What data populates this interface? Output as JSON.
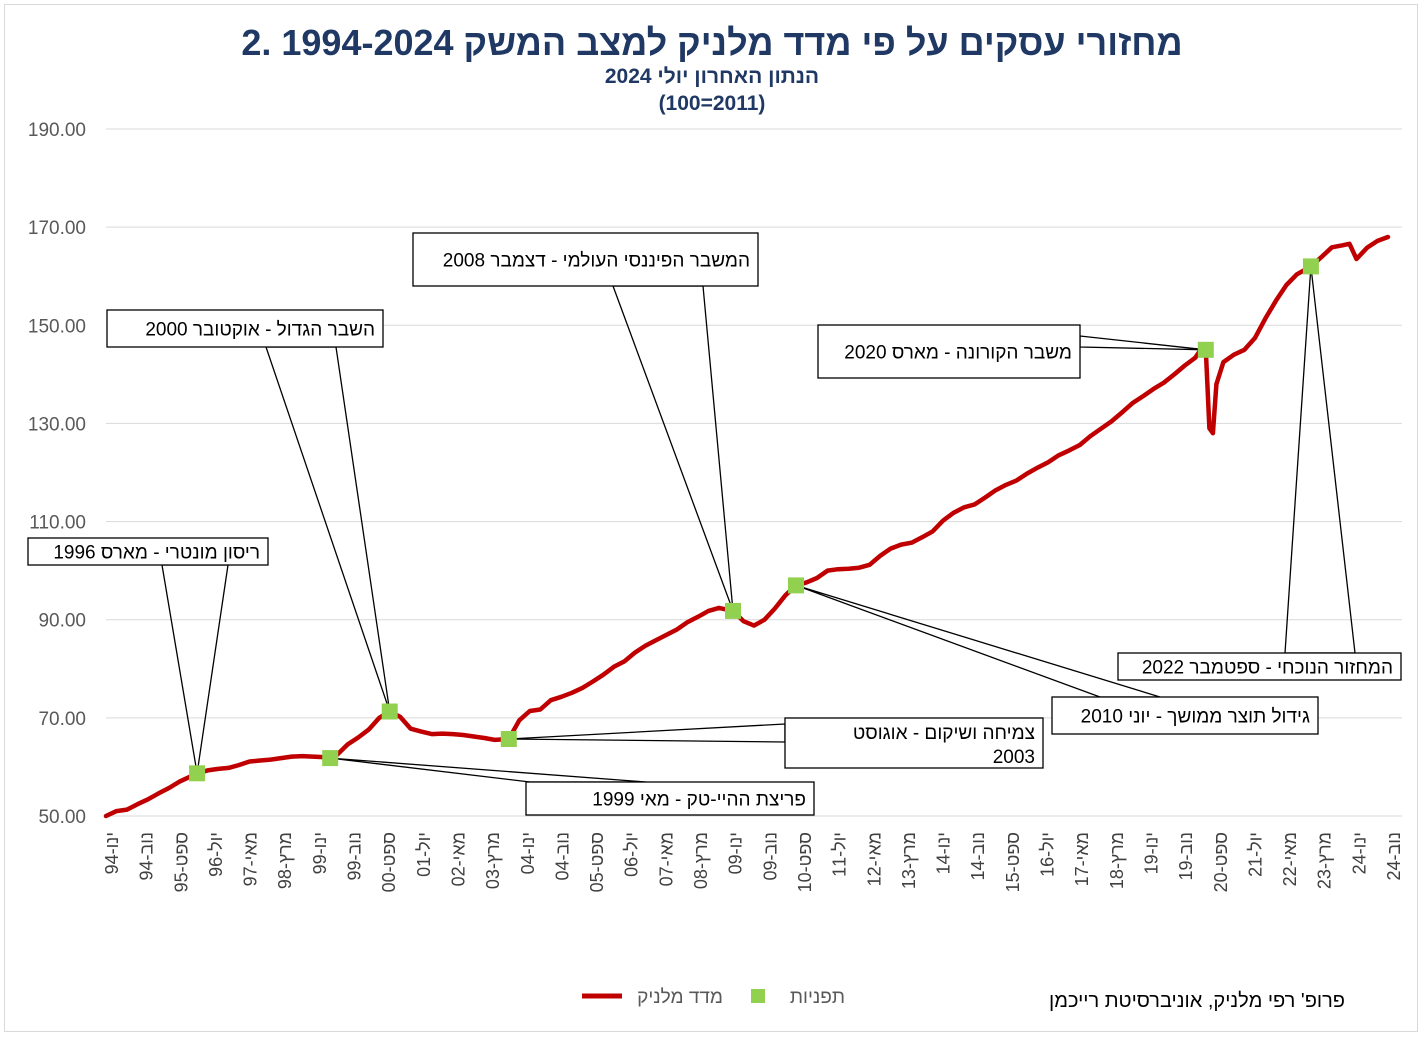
{
  "chart_data": {
    "type": "line",
    "title": "2. מחזורי עסקים על פי מדד מלניק למצב המשק 1994-2024",
    "subtitle": "הנתון האחרון יולי 2024",
    "subtitle2": "(100=2011)",
    "ylim": [
      50,
      190
    ],
    "yticks": [
      "50.00",
      "70.00",
      "90.00",
      "110.00",
      "130.00",
      "150.00",
      "170.00",
      "190.00"
    ],
    "grid": true,
    "x_ticks": [
      "ינו-94",
      "נוב-94",
      "ספט-95",
      "יול-96",
      "מאי-97",
      "מרץ-98",
      "ינו-99",
      "נוב-99",
      "ספט-00",
      "יול-01",
      "מאי-02",
      "מרץ-03",
      "ינו-04",
      "נוב-04",
      "ספט-05",
      "יול-06",
      "מאי-07",
      "מרץ-08",
      "ינו-09",
      "נוב-09",
      "ספט-10",
      "יול-11",
      "מאי-12",
      "מרץ-13",
      "ינו-14",
      "נוב-14",
      "ספט-15",
      "יול-16",
      "מאי-17",
      "מרץ-18",
      "ינו-19",
      "נוב-19",
      "ספט-20",
      "יול-21",
      "מאי-22",
      "מרץ-23",
      "ינו-24",
      "נוב-24"
    ],
    "series": [
      {
        "name": "מדד מלניק",
        "color": "#c00000",
        "points": [
          [
            "1994-01",
            50.0
          ],
          [
            "1994-04",
            51.0
          ],
          [
            "1994-07",
            51.3
          ],
          [
            "1994-10",
            52.4
          ],
          [
            "1995-01",
            53.4
          ],
          [
            "1995-04",
            54.6
          ],
          [
            "1995-07",
            55.7
          ],
          [
            "1995-10",
            57.0
          ],
          [
            "1996-01",
            58.0
          ],
          [
            "1996-03",
            58.7
          ],
          [
            "1996-06",
            59.3
          ],
          [
            "1996-09",
            59.6
          ],
          [
            "1996-12",
            59.8
          ],
          [
            "1997-03",
            60.4
          ],
          [
            "1997-06",
            61.1
          ],
          [
            "1997-09",
            61.3
          ],
          [
            "1997-12",
            61.5
          ],
          [
            "1998-03",
            61.8
          ],
          [
            "1998-06",
            62.1
          ],
          [
            "1998-09",
            62.2
          ],
          [
            "1998-12",
            62.1
          ],
          [
            "1999-03",
            62.0
          ],
          [
            "1999-05",
            61.8
          ],
          [
            "1999-07",
            62.5
          ],
          [
            "1999-10",
            64.6
          ],
          [
            "2000-01",
            66.0
          ],
          [
            "2000-04",
            67.6
          ],
          [
            "2000-07",
            70.0
          ],
          [
            "2000-10",
            71.3
          ],
          [
            "2001-01",
            70.2
          ],
          [
            "2001-04",
            67.8
          ],
          [
            "2001-07",
            67.2
          ],
          [
            "2001-10",
            66.7
          ],
          [
            "2002-01",
            66.8
          ],
          [
            "2002-04",
            66.7
          ],
          [
            "2002-07",
            66.5
          ],
          [
            "2002-10",
            66.2
          ],
          [
            "2003-01",
            65.9
          ],
          [
            "2003-04",
            65.5
          ],
          [
            "2003-08",
            65.7
          ],
          [
            "2003-11",
            69.5
          ],
          [
            "2004-02",
            71.4
          ],
          [
            "2004-05",
            71.7
          ],
          [
            "2004-08",
            73.6
          ],
          [
            "2004-11",
            74.3
          ],
          [
            "2005-02",
            75.1
          ],
          [
            "2005-05",
            76.1
          ],
          [
            "2005-08",
            77.4
          ],
          [
            "2005-11",
            78.8
          ],
          [
            "2006-02",
            80.4
          ],
          [
            "2006-05",
            81.5
          ],
          [
            "2006-08",
            83.3
          ],
          [
            "2006-11",
            84.7
          ],
          [
            "2007-02",
            85.8
          ],
          [
            "2007-05",
            86.9
          ],
          [
            "2007-08",
            88.0
          ],
          [
            "2007-11",
            89.5
          ],
          [
            "2008-02",
            90.6
          ],
          [
            "2008-05",
            91.8
          ],
          [
            "2008-08",
            92.4
          ],
          [
            "2008-12",
            91.8
          ],
          [
            "2009-03",
            89.7
          ],
          [
            "2009-06",
            88.8
          ],
          [
            "2009-09",
            90.0
          ],
          [
            "2009-12",
            92.3
          ],
          [
            "2010-03",
            95.0
          ],
          [
            "2010-06",
            97.0
          ],
          [
            "2010-09",
            97.6
          ],
          [
            "2010-12",
            98.5
          ],
          [
            "2011-03",
            100.0
          ],
          [
            "2011-06",
            100.3
          ],
          [
            "2011-09",
            100.4
          ],
          [
            "2011-12",
            100.6
          ],
          [
            "2012-03",
            101.2
          ],
          [
            "2012-06",
            103.0
          ],
          [
            "2012-09",
            104.5
          ],
          [
            "2012-12",
            105.3
          ],
          [
            "2013-03",
            105.7
          ],
          [
            "2013-06",
            106.8
          ],
          [
            "2013-09",
            108.0
          ],
          [
            "2013-12",
            110.2
          ],
          [
            "2014-03",
            111.8
          ],
          [
            "2014-06",
            112.9
          ],
          [
            "2014-09",
            113.5
          ],
          [
            "2014-12",
            114.9
          ],
          [
            "2015-03",
            116.4
          ],
          [
            "2015-06",
            117.5
          ],
          [
            "2015-09",
            118.4
          ],
          [
            "2015-12",
            119.8
          ],
          [
            "2016-03",
            121.0
          ],
          [
            "2016-06",
            122.1
          ],
          [
            "2016-09",
            123.5
          ],
          [
            "2016-12",
            124.5
          ],
          [
            "2017-03",
            125.6
          ],
          [
            "2017-06",
            127.4
          ],
          [
            "2017-09",
            128.9
          ],
          [
            "2017-12",
            130.4
          ],
          [
            "2018-03",
            132.2
          ],
          [
            "2018-06",
            134.1
          ],
          [
            "2018-09",
            135.5
          ],
          [
            "2018-12",
            137.0
          ],
          [
            "2019-03",
            138.3
          ],
          [
            "2019-06",
            140.0
          ],
          [
            "2019-09",
            141.8
          ],
          [
            "2019-12",
            143.4
          ],
          [
            "2020-02",
            145.5
          ],
          [
            "2020-03",
            145.0
          ],
          [
            "2020-04",
            129.0
          ],
          [
            "2020-05",
            128.0
          ],
          [
            "2020-06",
            138.0
          ],
          [
            "2020-08",
            142.5
          ],
          [
            "2020-11",
            144.0
          ],
          [
            "2021-02",
            145.0
          ],
          [
            "2021-05",
            147.4
          ],
          [
            "2021-08",
            151.4
          ],
          [
            "2021-11",
            155.0
          ],
          [
            "2022-02",
            158.2
          ],
          [
            "2022-05",
            160.4
          ],
          [
            "2022-09",
            162.0
          ],
          [
            "2022-12",
            163.9
          ],
          [
            "2023-03",
            165.9
          ],
          [
            "2023-06",
            166.3
          ],
          [
            "2023-08",
            166.6
          ],
          [
            "2023-10",
            163.5
          ],
          [
            "2024-01",
            165.8
          ],
          [
            "2024-04",
            167.2
          ],
          [
            "2024-07",
            168.0
          ]
        ]
      },
      {
        "name": "תפניות",
        "color": "#92d050",
        "points": [
          [
            "1996-03",
            58.7
          ],
          [
            "1999-05",
            61.8
          ],
          [
            "2000-10",
            71.3
          ],
          [
            "2003-08",
            65.7
          ],
          [
            "2008-12",
            91.8
          ],
          [
            "2010-06",
            97.0
          ],
          [
            "2020-03",
            145.0
          ],
          [
            "2022-09",
            162.0
          ]
        ]
      }
    ],
    "annotations": [
      {
        "text": "ריסון מונטרי - מארס 1996",
        "date": "1996-03",
        "value": 58.7
      },
      {
        "text": "פריצת ההיי-טק - מאי 1999",
        "date": "1999-05",
        "value": 61.8
      },
      {
        "text": "השבר הגדול - אוקטובר 2000",
        "date": "2000-10",
        "value": 71.3
      },
      {
        "text": "צמיחה ושיקום - אוגוסט",
        "text2": "2003",
        "date": "2003-08",
        "value": 65.7
      },
      {
        "text": "המשבר הפיננסי העולמי - דצמבר 2008",
        "date": "2008-12",
        "value": 91.8
      },
      {
        "text": "גידול תוצר ממושך - יוני 2010",
        "date": "2010-06",
        "value": 97.0
      },
      {
        "text": "משבר הקורונה - מארס 2020",
        "date": "2020-03",
        "value": 145.0
      },
      {
        "text": "המחזור הנוכחי - ספטמבר 2022",
        "date": "2022-09",
        "value": 162.0
      }
    ],
    "legend_position": "bottom"
  },
  "credit": "פרופ' רפי מלניק, אוניברסיטת רייכמן"
}
